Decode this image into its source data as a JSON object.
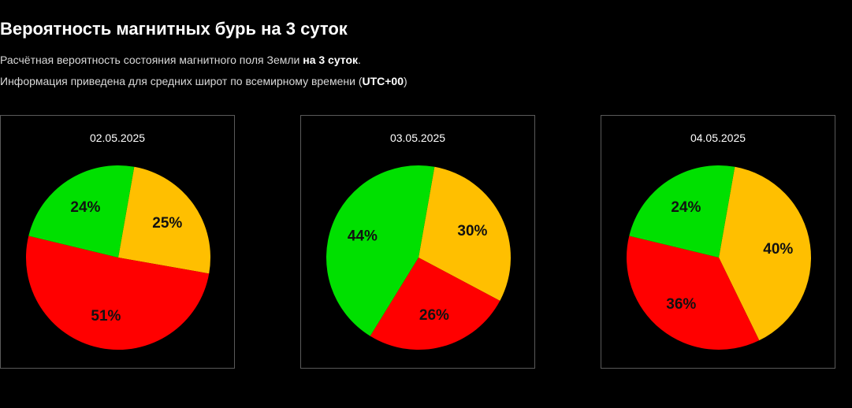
{
  "header": {
    "title": "Вероятность магнитных бурь на 3 суток",
    "line1_prefix": "Расчётная вероятность состояния магнитного поля Земли ",
    "line1_bold": "на 3 суток",
    "line1_suffix": ".",
    "line2_prefix": "Информация приведена для средних широт по всемирному времени (",
    "line2_bold": "UTC+00",
    "line2_suffix": ")"
  },
  "colors": {
    "green": "#00e000",
    "yellow": "#ffbf00",
    "red": "#ff0000",
    "background": "#000000",
    "card_border": "#5a5a5a"
  },
  "chart_data": [
    {
      "type": "pie",
      "title": "02.05.2025",
      "slices": [
        {
          "value": 25,
          "label": "25%",
          "color": "#ffbf00"
        },
        {
          "value": 51,
          "label": "51%",
          "color": "#ff0000"
        },
        {
          "value": 24,
          "label": "24%",
          "color": "#00e000"
        }
      ]
    },
    {
      "type": "pie",
      "title": "03.05.2025",
      "slices": [
        {
          "value": 30,
          "label": "30%",
          "color": "#ffbf00"
        },
        {
          "value": 26,
          "label": "26%",
          "color": "#ff0000"
        },
        {
          "value": 44,
          "label": "44%",
          "color": "#00e000"
        }
      ]
    },
    {
      "type": "pie",
      "title": "04.05.2025",
      "slices": [
        {
          "value": 40,
          "label": "40%",
          "color": "#ffbf00"
        },
        {
          "value": 36,
          "label": "36%",
          "color": "#ff0000"
        },
        {
          "value": 24,
          "label": "24%",
          "color": "#00e000"
        }
      ]
    }
  ]
}
